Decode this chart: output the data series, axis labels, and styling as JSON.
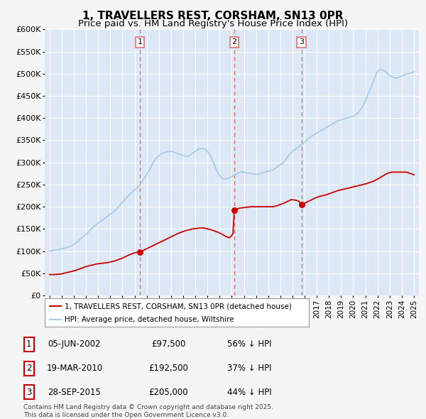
{
  "title": "1, TRAVELLERS REST, CORSHAM, SN13 0PR",
  "subtitle": "Price paid vs. HM Land Registry's House Price Index (HPI)",
  "title_fontsize": 11,
  "subtitle_fontsize": 9.5,
  "ylabel_ticks": [
    "£0",
    "£50K",
    "£100K",
    "£150K",
    "£200K",
    "£250K",
    "£300K",
    "£350K",
    "£400K",
    "£450K",
    "£500K",
    "£550K",
    "£600K"
  ],
  "ytick_values": [
    0,
    50000,
    100000,
    150000,
    200000,
    250000,
    300000,
    350000,
    400000,
    450000,
    500000,
    550000,
    600000
  ],
  "xlim_start": 1994.6,
  "xlim_end": 2025.4,
  "ylim_min": 0,
  "ylim_max": 600000,
  "purchase_dates": [
    2002.43,
    2010.21,
    2015.74
  ],
  "purchase_prices": [
    97500,
    192500,
    205000
  ],
  "purchase_labels": [
    "1",
    "2",
    "3"
  ],
  "hpi_color": "#a8cce8",
  "price_color": "#cc0000",
  "vline_color": "#e87070",
  "background_color": "#f5f5f5",
  "plot_bg_color": "#dce8f5",
  "legend_label_price": "1, TRAVELLERS REST, CORSHAM, SN13 0PR (detached house)",
  "legend_label_hpi": "HPI: Average price, detached house, Wiltshire",
  "table_data": [
    {
      "num": "1",
      "date": "05-JUN-2002",
      "price": "£97,500",
      "pct": "56% ↓ HPI"
    },
    {
      "num": "2",
      "date": "19-MAR-2010",
      "price": "£192,500",
      "pct": "37% ↓ HPI"
    },
    {
      "num": "3",
      "date": "28-SEP-2015",
      "price": "£205,000",
      "pct": "44% ↓ HPI"
    }
  ],
  "footnote": "Contains HM Land Registry data © Crown copyright and database right 2025.\nThis data is licensed under the Open Government Licence v3.0.",
  "hpi_x": [
    1995.0,
    1995.25,
    1995.5,
    1995.75,
    1996.0,
    1996.25,
    1996.5,
    1996.75,
    1997.0,
    1997.25,
    1997.5,
    1997.75,
    1998.0,
    1998.25,
    1998.5,
    1998.75,
    1999.0,
    1999.25,
    1999.5,
    1999.75,
    2000.0,
    2000.25,
    2000.5,
    2000.75,
    2001.0,
    2001.25,
    2001.5,
    2001.75,
    2002.0,
    2002.25,
    2002.5,
    2002.75,
    2003.0,
    2003.25,
    2003.5,
    2003.75,
    2004.0,
    2004.25,
    2004.5,
    2004.75,
    2005.0,
    2005.25,
    2005.5,
    2005.75,
    2006.0,
    2006.25,
    2006.5,
    2006.75,
    2007.0,
    2007.25,
    2007.5,
    2007.75,
    2008.0,
    2008.25,
    2008.5,
    2008.75,
    2009.0,
    2009.25,
    2009.5,
    2009.75,
    2010.0,
    2010.25,
    2010.5,
    2010.75,
    2011.0,
    2011.25,
    2011.5,
    2011.75,
    2012.0,
    2012.25,
    2012.5,
    2012.75,
    2013.0,
    2013.25,
    2013.5,
    2013.75,
    2014.0,
    2014.25,
    2014.5,
    2014.75,
    2015.0,
    2015.25,
    2015.5,
    2015.75,
    2016.0,
    2016.25,
    2016.5,
    2016.75,
    2017.0,
    2017.25,
    2017.5,
    2017.75,
    2018.0,
    2018.25,
    2018.5,
    2018.75,
    2019.0,
    2019.25,
    2019.5,
    2019.75,
    2020.0,
    2020.25,
    2020.5,
    2020.75,
    2021.0,
    2021.25,
    2021.5,
    2021.75,
    2022.0,
    2022.25,
    2022.5,
    2022.75,
    2023.0,
    2023.25,
    2023.5,
    2023.75,
    2024.0,
    2024.25,
    2024.5,
    2024.75,
    2025.0
  ],
  "hpi_y": [
    100000,
    101000,
    102000,
    103000,
    105000,
    107000,
    109000,
    111000,
    115000,
    120000,
    126000,
    132000,
    138000,
    145000,
    152000,
    158000,
    163000,
    168000,
    173000,
    178000,
    183000,
    188000,
    195000,
    202000,
    210000,
    218000,
    225000,
    232000,
    238000,
    244000,
    252000,
    262000,
    273000,
    285000,
    298000,
    308000,
    315000,
    320000,
    322000,
    324000,
    325000,
    323000,
    320000,
    318000,
    315000,
    313000,
    315000,
    320000,
    325000,
    330000,
    332000,
    330000,
    325000,
    315000,
    300000,
    282000,
    270000,
    263000,
    262000,
    265000,
    268000,
    272000,
    276000,
    278000,
    278000,
    276000,
    275000,
    274000,
    273000,
    274000,
    276000,
    278000,
    280000,
    282000,
    285000,
    290000,
    295000,
    300000,
    308000,
    318000,
    325000,
    330000,
    335000,
    340000,
    346000,
    352000,
    358000,
    362000,
    366000,
    370000,
    374000,
    378000,
    382000,
    386000,
    390000,
    394000,
    396000,
    398000,
    400000,
    402000,
    404000,
    408000,
    415000,
    425000,
    438000,
    455000,
    470000,
    490000,
    505000,
    510000,
    508000,
    502000,
    496000,
    492000,
    490000,
    492000,
    495000,
    498000,
    500000,
    502000,
    504000
  ],
  "price_x": [
    1995.0,
    1995.3,
    1995.6,
    1995.9,
    1996.2,
    1996.5,
    1996.8,
    1997.1,
    1997.4,
    1997.7,
    1998.0,
    1998.3,
    1998.6,
    1998.9,
    1999.2,
    1999.5,
    1999.8,
    2000.1,
    2000.4,
    2000.7,
    2001.0,
    2001.3,
    2001.6,
    2001.9,
    2002.0,
    2002.2,
    2002.43,
    2002.6,
    2002.9,
    2003.2,
    2003.5,
    2003.8,
    2004.1,
    2004.4,
    2004.7,
    2005.0,
    2005.3,
    2005.6,
    2005.9,
    2006.2,
    2006.5,
    2006.8,
    2007.1,
    2007.4,
    2007.7,
    2008.0,
    2008.3,
    2008.6,
    2008.9,
    2009.2,
    2009.5,
    2009.8,
    2010.0,
    2010.1,
    2010.21,
    2010.4,
    2010.7,
    2011.0,
    2011.3,
    2011.6,
    2011.9,
    2012.2,
    2012.5,
    2012.8,
    2013.1,
    2013.4,
    2013.7,
    2014.0,
    2014.3,
    2014.6,
    2014.9,
    2015.2,
    2015.5,
    2015.74,
    2016.0,
    2016.3,
    2016.6,
    2016.9,
    2017.2,
    2017.5,
    2017.8,
    2018.1,
    2018.4,
    2018.7,
    2019.0,
    2019.3,
    2019.6,
    2019.9,
    2020.2,
    2020.5,
    2020.8,
    2021.1,
    2021.4,
    2021.7,
    2022.0,
    2022.3,
    2022.6,
    2022.9,
    2023.2,
    2023.5,
    2023.8,
    2024.1,
    2024.4,
    2024.7,
    2025.0
  ],
  "price_y": [
    47000,
    47000,
    47500,
    48000,
    50000,
    52000,
    54000,
    56000,
    59000,
    62000,
    65000,
    67000,
    69000,
    71000,
    72000,
    73000,
    74000,
    76000,
    78000,
    81000,
    84000,
    88000,
    92000,
    95000,
    96000,
    97000,
    97500,
    100000,
    104000,
    108000,
    112000,
    116000,
    120000,
    124000,
    128000,
    132000,
    136000,
    140000,
    143000,
    146000,
    148000,
    150000,
    151000,
    152000,
    152000,
    150000,
    148000,
    145000,
    142000,
    138000,
    133000,
    130000,
    135000,
    140000,
    192500,
    195000,
    197000,
    198000,
    199000,
    200000,
    200000,
    200000,
    200000,
    200000,
    200000,
    200000,
    202000,
    205000,
    208000,
    212000,
    216000,
    215000,
    213000,
    205000,
    208000,
    212000,
    216000,
    220000,
    223000,
    225000,
    227000,
    230000,
    233000,
    236000,
    238000,
    240000,
    242000,
    244000,
    246000,
    248000,
    250000,
    252000,
    255000,
    258000,
    262000,
    267000,
    272000,
    276000,
    278000,
    278000,
    278000,
    278000,
    278000,
    275000,
    272000
  ]
}
